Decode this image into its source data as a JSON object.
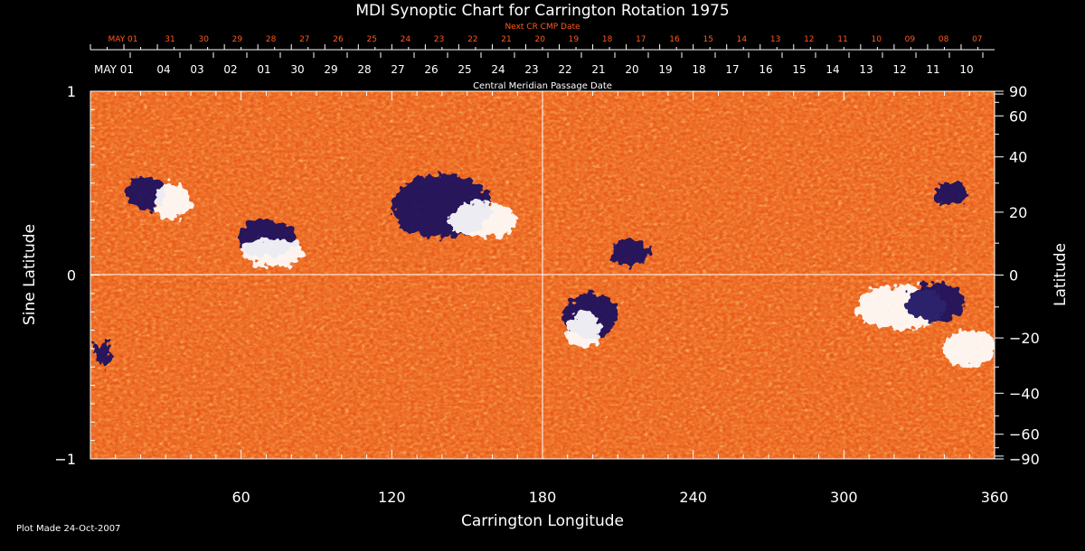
{
  "title": "MDI Synoptic Chart for Carrington Rotation 1975",
  "top_axis": {
    "next_label": "Next CR CMP Date",
    "next_ticks": [
      "MAY 01",
      "31",
      "30",
      "29",
      "28",
      "27",
      "26",
      "25",
      "24",
      "23",
      "22",
      "21",
      "20",
      "19",
      "18",
      "17",
      "16",
      "15",
      "14",
      "13",
      "12",
      "11",
      "10",
      "09",
      "08",
      "07"
    ],
    "cmp_label": "Central Meridian Passage Date",
    "cmp_ticks": [
      "MAY 01",
      "04",
      "03",
      "02",
      "01",
      "30",
      "29",
      "28",
      "27",
      "26",
      "25",
      "24",
      "23",
      "22",
      "21",
      "20",
      "19",
      "18",
      "17",
      "16",
      "15",
      "14",
      "13",
      "12",
      "11",
      "10"
    ]
  },
  "plot_made": "Plot Made 24-Oct-2007",
  "colors": {
    "background": "#000000",
    "field_base": "#e84a12",
    "positive": "#ffffff",
    "negative": "#1a1060",
    "next_cr_text": "#ff5a1e"
  },
  "chart_data": {
    "type": "heatmap",
    "xlabel": "Carrington Longitude",
    "ylabel_left": "Sine Latitude",
    "ylabel_right": "Latitude",
    "xlim": [
      0,
      360
    ],
    "ylim": [
      -1,
      1
    ],
    "x_ticks": [
      "60",
      "120",
      "180",
      "240",
      "300",
      "360"
    ],
    "x_tick_values": [
      60,
      120,
      180,
      240,
      300,
      360
    ],
    "y_left_ticks": [
      "1",
      "0",
      "−1"
    ],
    "y_left_tick_values": [
      1,
      0,
      -1
    ],
    "y_right_ticks": [
      "90",
      "60",
      "40",
      "20",
      "0",
      "−20",
      "−40",
      "−60",
      "−90"
    ],
    "y_right_tick_values": [
      90,
      60,
      40,
      20,
      0,
      -20,
      -40,
      -60,
      -90
    ],
    "reference_lines": [
      {
        "axis": "x",
        "value": 180
      },
      {
        "axis": "y",
        "value": 0
      }
    ],
    "regions": [
      {
        "polarity": "negative",
        "lon": [
          14,
          30
        ],
        "sinlat": [
          0.35,
          0.55
        ]
      },
      {
        "polarity": "positive",
        "lon": [
          25,
          40
        ],
        "sinlat": [
          0.3,
          0.5
        ]
      },
      {
        "polarity": "negative",
        "lon": [
          58,
          82
        ],
        "sinlat": [
          0.1,
          0.3
        ]
      },
      {
        "polarity": "positive",
        "lon": [
          60,
          85
        ],
        "sinlat": [
          0.05,
          0.2
        ]
      },
      {
        "polarity": "negative",
        "lon": [
          120,
          160
        ],
        "sinlat": [
          0.2,
          0.55
        ]
      },
      {
        "polarity": "positive",
        "lon": [
          143,
          170
        ],
        "sinlat": [
          0.2,
          0.4
        ]
      },
      {
        "polarity": "negative",
        "lon": [
          188,
          210
        ],
        "sinlat": [
          -0.35,
          -0.1
        ]
      },
      {
        "polarity": "positive",
        "lon": [
          190,
          203
        ],
        "sinlat": [
          -0.4,
          -0.2
        ]
      },
      {
        "polarity": "negative",
        "lon": [
          208,
          222
        ],
        "sinlat": [
          0.05,
          0.2
        ]
      },
      {
        "polarity": "positive",
        "lon": [
          305,
          340
        ],
        "sinlat": [
          -0.3,
          -0.05
        ]
      },
      {
        "polarity": "negative",
        "lon": [
          325,
          348
        ],
        "sinlat": [
          -0.25,
          -0.05
        ]
      },
      {
        "polarity": "negative",
        "lon": [
          336,
          350
        ],
        "sinlat": [
          0.38,
          0.5
        ]
      },
      {
        "polarity": "positive",
        "lon": [
          340,
          360
        ],
        "sinlat": [
          -0.5,
          -0.3
        ]
      },
      {
        "polarity": "negative",
        "lon": [
          2,
          8
        ],
        "sinlat": [
          -0.5,
          -0.35
        ]
      }
    ]
  }
}
